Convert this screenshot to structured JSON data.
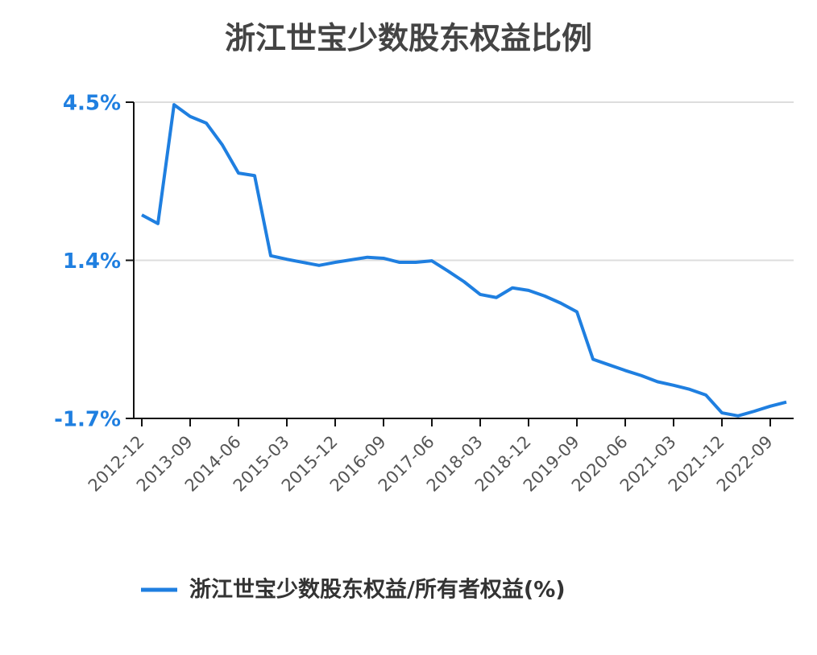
{
  "chart_data": {
    "type": "line",
    "title": "浙江世宝少数股东权益比例",
    "categories": [
      "2012-12",
      null,
      null,
      "2013-09",
      null,
      null,
      "2014-06",
      null,
      null,
      "2015-03",
      null,
      null,
      "2015-12",
      null,
      null,
      "2016-09",
      null,
      null,
      "2017-06",
      null,
      null,
      "2018-03",
      null,
      null,
      "2018-12",
      null,
      null,
      "2019-09",
      null,
      null,
      "2020-06",
      null,
      null,
      "2021-03",
      null,
      null,
      "2021-12",
      null,
      null,
      "2022-09",
      null
    ],
    "series": [
      {
        "name": "浙江世宝少数股东权益/所有者权益(%)",
        "color": "#1f7fe0",
        "values": [
          2.29,
          2.12,
          4.45,
          4.22,
          4.09,
          3.66,
          3.11,
          3.06,
          1.49,
          1.42,
          1.36,
          1.3,
          1.36,
          1.41,
          1.46,
          1.44,
          1.36,
          1.36,
          1.39,
          1.19,
          0.98,
          0.73,
          0.67,
          0.86,
          0.81,
          0.7,
          0.56,
          0.39,
          -0.54,
          -0.65,
          -0.76,
          -0.86,
          -0.98,
          -1.05,
          -1.13,
          -1.24,
          -1.59,
          -1.65,
          -1.56,
          -1.46,
          -1.38
        ]
      }
    ],
    "ylim": [
      -1.7,
      4.5
    ],
    "yticks": [
      {
        "value": -1.7,
        "label": "-1.7%"
      },
      {
        "value": 1.4,
        "label": "1.4%"
      },
      {
        "value": 4.5,
        "label": "4.5%"
      }
    ],
    "grid": true,
    "legend": "bottom"
  }
}
